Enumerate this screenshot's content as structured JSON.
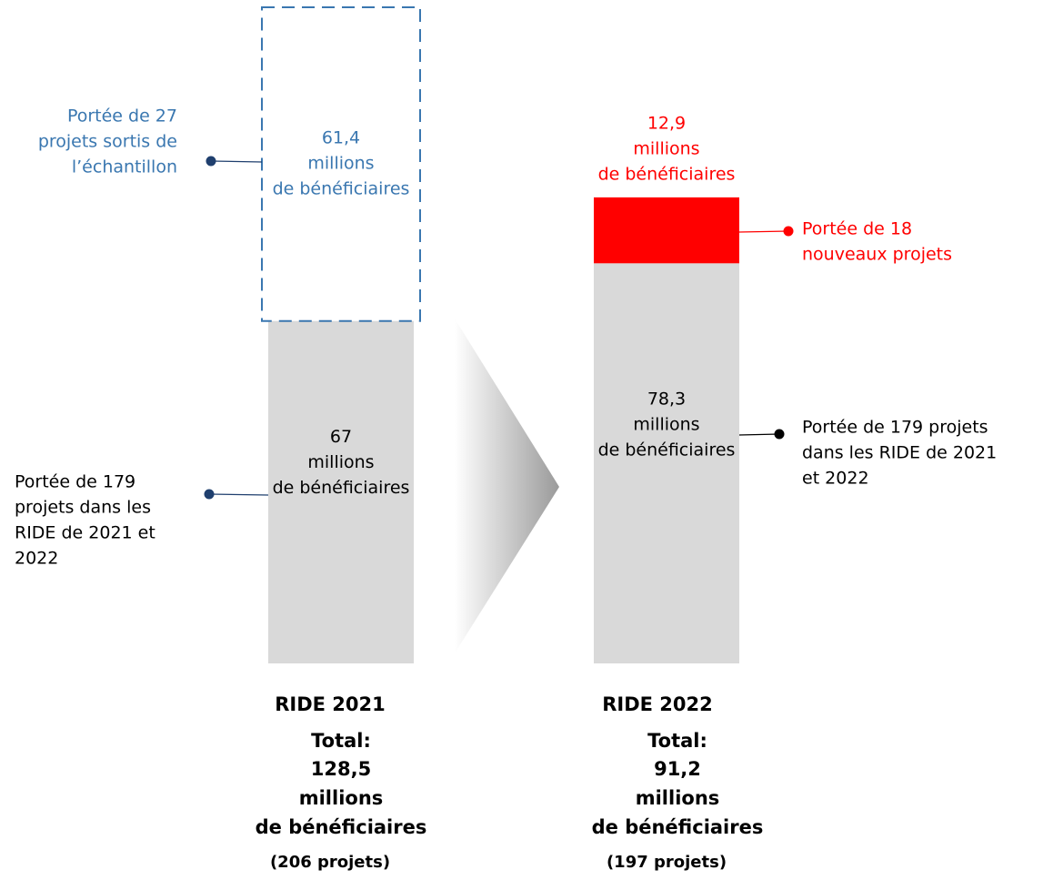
{
  "chart_data": {
    "type": "bar",
    "stacked": true,
    "categories": [
      "RIDE 2021",
      "RIDE 2022"
    ],
    "series": [
      {
        "colors": [
          "#d9d9d9",
          "#d9d9d9"
        ],
        "label_colors": [
          "#000000",
          "#000000"
        ],
        "styles": [
          "solid",
          "solid"
        ],
        "values": [
          67,
          78.3
        ],
        "value_labels": [
          "67",
          "78,3"
        ],
        "annotations": [
          [
            "Portée de 179",
            "projets dans les",
            "RIDE de 2021 et",
            "2022"
          ],
          [
            "Portée de 179 projets",
            "dans les RIDE de 2021",
            "et 2022"
          ]
        ],
        "annotation_colors": [
          "#000000",
          "#000000"
        ],
        "dot_colors": [
          "#1f3f6e",
          "#000000"
        ]
      },
      {
        "colors": [
          "#3a77b0",
          "#ff0000"
        ],
        "label_colors": [
          "#3a77b0",
          "#ff0000"
        ],
        "styles": [
          "dashed",
          "solid"
        ],
        "values": [
          61.4,
          12.9
        ],
        "value_labels": [
          "61,4",
          "12,9"
        ],
        "annotations": [
          [
            "Portée de 27",
            "projets sortis de",
            "l’échantillon"
          ],
          [
            "Portée de 18",
            "nouveaux projets"
          ]
        ],
        "annotation_colors": [
          "#3a77b0",
          "#ff0000"
        ],
        "dot_colors": [
          "#1f3f6e",
          "#ff0000"
        ]
      }
    ],
    "unit_lines": [
      "millions",
      "de bénéficiaires"
    ],
    "total_label": "Total:",
    "totals": [
      128.5,
      91.2
    ],
    "totals_labels": [
      "128,5",
      "91,2"
    ],
    "projects_labels": [
      "(206 projets)",
      "(197 projets)"
    ]
  }
}
